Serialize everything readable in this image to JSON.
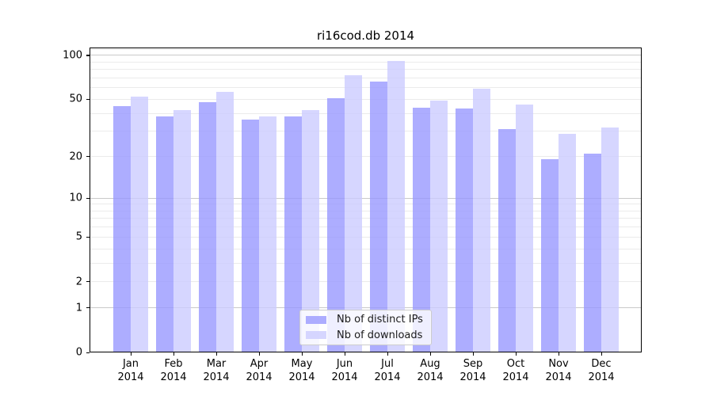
{
  "chart_data": {
    "type": "bar",
    "title": "ri16cod.db 2014",
    "categories": [
      {
        "month": "Jan",
        "year": "2014"
      },
      {
        "month": "Feb",
        "year": "2014"
      },
      {
        "month": "Mar",
        "year": "2014"
      },
      {
        "month": "Apr",
        "year": "2014"
      },
      {
        "month": "May",
        "year": "2014"
      },
      {
        "month": "Jun",
        "year": "2014"
      },
      {
        "month": "Jul",
        "year": "2014"
      },
      {
        "month": "Aug",
        "year": "2014"
      },
      {
        "month": "Sep",
        "year": "2014"
      },
      {
        "month": "Oct",
        "year": "2014"
      },
      {
        "month": "Nov",
        "year": "2014"
      },
      {
        "month": "Dec",
        "year": "2014"
      }
    ],
    "series": [
      {
        "name": "Nb of distinct IPs",
        "color": "#9999ff",
        "opacity": 0.8,
        "values": [
          45,
          38,
          48,
          36,
          38,
          51,
          66,
          44,
          43,
          31,
          19,
          21
        ]
      },
      {
        "name": "Nb of downloads",
        "color": "#ccccff",
        "opacity": 0.8,
        "values": [
          52,
          42,
          56,
          38,
          42,
          73,
          91,
          49,
          59,
          46,
          29,
          32
        ]
      }
    ],
    "xlabel": "",
    "ylabel": "",
    "yscale": "log10(1+v)",
    "ylim": [
      0,
      113
    ],
    "yticks": [
      0,
      1,
      2,
      5,
      10,
      20,
      50,
      100
    ],
    "major_gridlines": [
      1,
      10,
      100
    ],
    "minor_gridlines": [
      2,
      3,
      4,
      5,
      6,
      7,
      8,
      9,
      20,
      30,
      40,
      50,
      60,
      70,
      80,
      90,
      110
    ],
    "grid": true,
    "legend_position": "lower center-left inside plot"
  },
  "colors": {
    "major_grid": "#c9c9c9",
    "minor_grid": "#ebebeb",
    "axis": "#000000",
    "legend_border": "#cccccc",
    "text": "#000000"
  }
}
